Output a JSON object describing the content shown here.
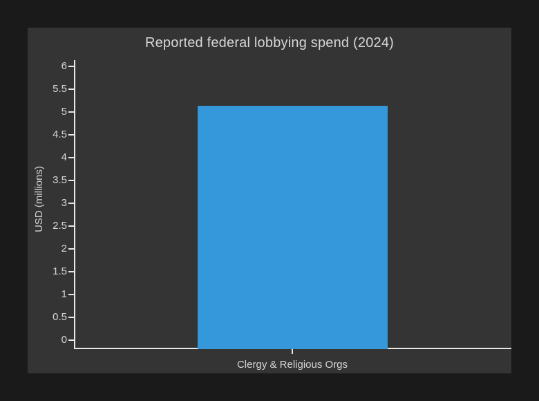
{
  "page": {
    "background": "#1a1a1a"
  },
  "figure": {
    "background": "#343434"
  },
  "chart_data": {
    "type": "bar",
    "title": "Reported federal lobbying spend (2024)",
    "xlabel": "",
    "ylabel": "USD (millions)",
    "categories": [
      "Clergy & Religious Orgs"
    ],
    "values": [
      5.13
    ],
    "ylim": [
      0,
      6
    ],
    "yticks": [
      0,
      0.5,
      1,
      1.5,
      2,
      2.5,
      3,
      3.5,
      4,
      4.5,
      5,
      5.5,
      6
    ],
    "ytick_labels": [
      "0",
      "0.5",
      "1",
      "1.5",
      "2",
      "2.5",
      "3",
      "3.5",
      "4",
      "4.5",
      "5",
      "5.5",
      "6"
    ],
    "grid": false,
    "legend_position": "none",
    "colors": {
      "bar": "#3498db",
      "axis": "#e8e8e8",
      "text": "#d6d6d6",
      "figure_background": "#343434",
      "page_background": "#1a1a1a"
    }
  }
}
